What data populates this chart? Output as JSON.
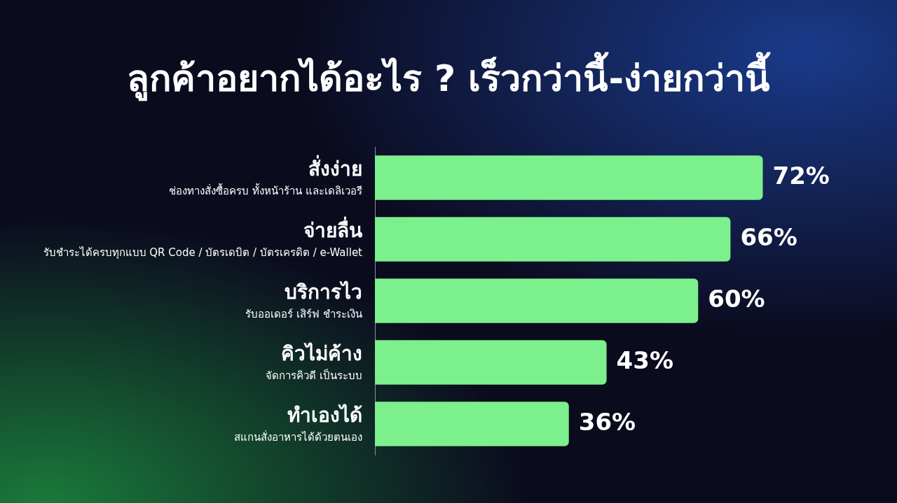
{
  "chart_data": {
    "type": "bar",
    "orientation": "horizontal",
    "title": "ลูกค้าอยากได้อะไร ? เร็วกว่านี้-ง่ายกว่านี้",
    "categories": [
      "สั่งง่าย\nช่องทางสั่งซื้อครบ ทั้งหน้าร้าน และเดลิเวอรี",
      "จ่ายลื่น\nรับชำระได้ครบทุกแบบ QR Code / บัตรเดบิต / บัตรเครดิต / e-Wallet",
      "บริการไว\nรับออเดอร์ เสิร์ฟ ชำระเงิน",
      "คิวไม่ค้าง\nจัดการคิวดี เป็นระบบ",
      "ทำเองได้\nสแกนสั่งอาหารได้ด้วยตนเอง"
    ],
    "values": [
      72,
      66,
      60,
      43,
      36
    ],
    "value_labels": [
      "72%",
      "66%",
      "60%",
      "43%",
      "36%"
    ],
    "color": "#7cf08c",
    "legend": false
  }
}
